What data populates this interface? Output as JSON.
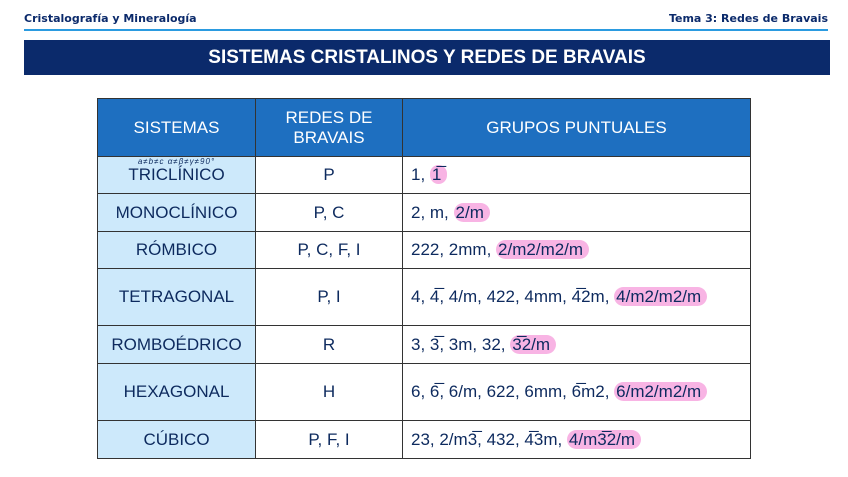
{
  "header": {
    "left": "Cristalografía y Mineralogía",
    "right": "Tema 3: Redes de Bravais"
  },
  "title": "SISTEMAS CRISTALINOS Y REDES DE BRAVAIS",
  "colors": {
    "title_bg": "#0b2a6b",
    "table_header": "#1e6fc0",
    "system_col": "#cde9fb",
    "highlight": "#f8b4e4"
  },
  "table": {
    "headers": [
      "SISTEMAS",
      "REDES DE BRAVAIS",
      "GRUPOS PUNTUALES"
    ],
    "rows": [
      {
        "system": "TRICLÍNICO",
        "note": "a≠b≠c α≠β≠γ≠90°",
        "lattices": "P",
        "groups": "1, ",
        "highlight": "1̅"
      },
      {
        "system": "MONOCLÍNICO",
        "lattices": "P, C",
        "groups": "2, m, ",
        "highlight": "2/m"
      },
      {
        "system": "RÓMBICO",
        "lattices": "P, C, F, I",
        "groups": "222, 2mm, ",
        "highlight": "2/m2/m2/m"
      },
      {
        "system": "TETRAGONAL",
        "lattices": "P, I",
        "groups": "4, 4̅, 4/m, 422, 4mm, 4̅2m, ",
        "highlight": "4/m2/m2/m"
      },
      {
        "system": "ROMBOÉDRICO",
        "lattices": "R",
        "groups": "3, 3̅, 3m, 32, ",
        "highlight": "3̅2/m"
      },
      {
        "system": "HEXAGONAL",
        "lattices": "H",
        "groups": "6, 6̅, 6/m, 622, 6mm, 6̅m2, ",
        "highlight": "6/m2/m2/m"
      },
      {
        "system": "CÚBICO",
        "lattices": "P, F, I",
        "groups": "23, 2/m3̅, 432, 4̅3m, ",
        "highlight": "4/m3̅2/m"
      }
    ]
  }
}
